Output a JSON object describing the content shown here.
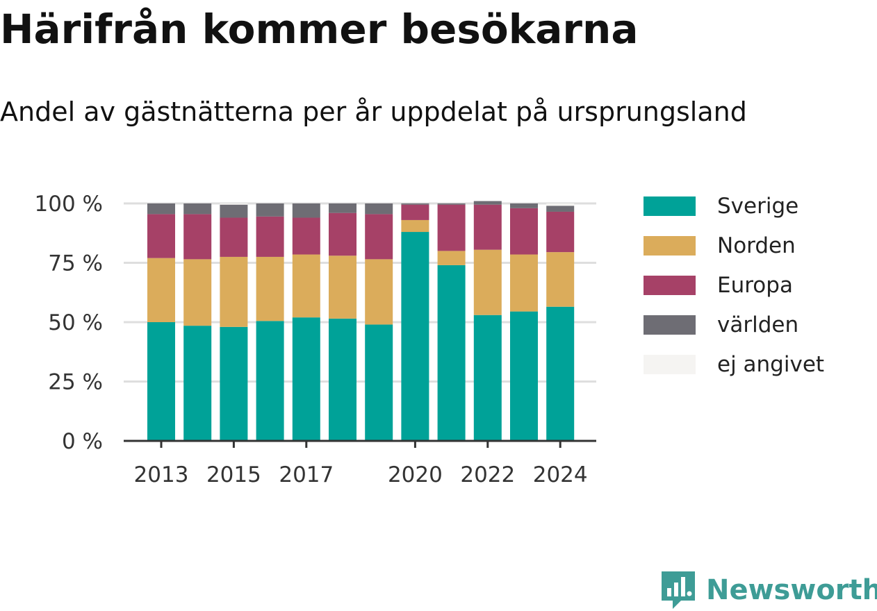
{
  "header": {
    "title": "Härifrån kommer besökarna",
    "subtitle": "Andel av gästnätterna per år uppdelat på ursprungsland"
  },
  "brand": {
    "name": "Newsworthy",
    "icon": "newsworthy-logo-icon",
    "color": "#3e9c96"
  },
  "chart_data": {
    "type": "bar",
    "stacked": true,
    "categories": [
      "2013",
      "2014",
      "2015",
      "2016",
      "2017",
      "2018",
      "2019",
      "2020",
      "2021",
      "2022",
      "2023",
      "2024"
    ],
    "x_tick_labels": [
      "2013",
      "2015",
      "2017",
      "2020",
      "2022",
      "2024"
    ],
    "y_ticks": [
      0,
      25,
      50,
      75,
      100
    ],
    "y_tick_labels": [
      "0 %",
      "25 %",
      "50 %",
      "75 %",
      "100 %"
    ],
    "ylim": [
      0,
      100
    ],
    "grid": true,
    "legend_position": "right",
    "series": [
      {
        "name": "Sverige",
        "color": "#00a298",
        "values": [
          50,
          48.5,
          48,
          50.5,
          52,
          51.5,
          49,
          88,
          74,
          53,
          54.5,
          56.5
        ]
      },
      {
        "name": "Norden",
        "color": "#dbac5b",
        "values": [
          27,
          28,
          29.5,
          27,
          26.5,
          26.5,
          27.5,
          5,
          6,
          27.5,
          24,
          23
        ]
      },
      {
        "name": "Europa",
        "color": "#a64167",
        "values": [
          18.5,
          19,
          16.5,
          17,
          15.5,
          18,
          19,
          6.5,
          19.5,
          19,
          19.5,
          17
        ]
      },
      {
        "name": "världen",
        "color": "#6e6d74",
        "values": [
          4.5,
          4.5,
          5.5,
          5.5,
          6,
          4,
          4.5,
          0.5,
          0.5,
          1.5,
          2,
          2.5
        ]
      },
      {
        "name": "ej angivet",
        "color": "#f5f4f2",
        "values": [
          0,
          0,
          0.5,
          0,
          0,
          0,
          0,
          0,
          0,
          0,
          0,
          1
        ]
      }
    ]
  }
}
